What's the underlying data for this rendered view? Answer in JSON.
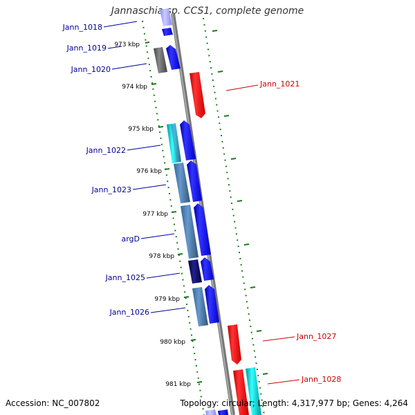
{
  "title": "Jannaschia sp. CCS1, complete genome",
  "footer": {
    "accession": "Accession: NC_007802",
    "summary": "Topology: circular; Length: 4,317,977 bp; Genes: 4,264"
  },
  "ticks": [
    {
      "label": "973 kbp"
    },
    {
      "label": "974 kbp"
    },
    {
      "label": "975 kbp"
    },
    {
      "label": "976 kbp"
    },
    {
      "label": "977 kbp"
    },
    {
      "label": "978 kbp"
    },
    {
      "label": "979 kbp"
    },
    {
      "label": "980 kbp"
    },
    {
      "label": "981 kbp"
    }
  ],
  "genes_left": [
    {
      "label": "Jann_1018"
    },
    {
      "label": "Jann_1019"
    },
    {
      "label": "Jann_1020"
    },
    {
      "label": "Jann_1022"
    },
    {
      "label": "Jann_1023"
    },
    {
      "label": "argD"
    },
    {
      "label": "Jann_1025"
    },
    {
      "label": "Jann_1026"
    }
  ],
  "genes_right": [
    {
      "label": "Jann_1021"
    },
    {
      "label": "Jann_1027"
    },
    {
      "label": "Jann_1028"
    }
  ],
  "colors": {
    "forward_cds": "#0000ee",
    "reverse_cds": "#ee0000",
    "backbone": "#888888",
    "tick": "#1a7a1a",
    "left_label": "#000099",
    "right_label": "#cc0000"
  }
}
